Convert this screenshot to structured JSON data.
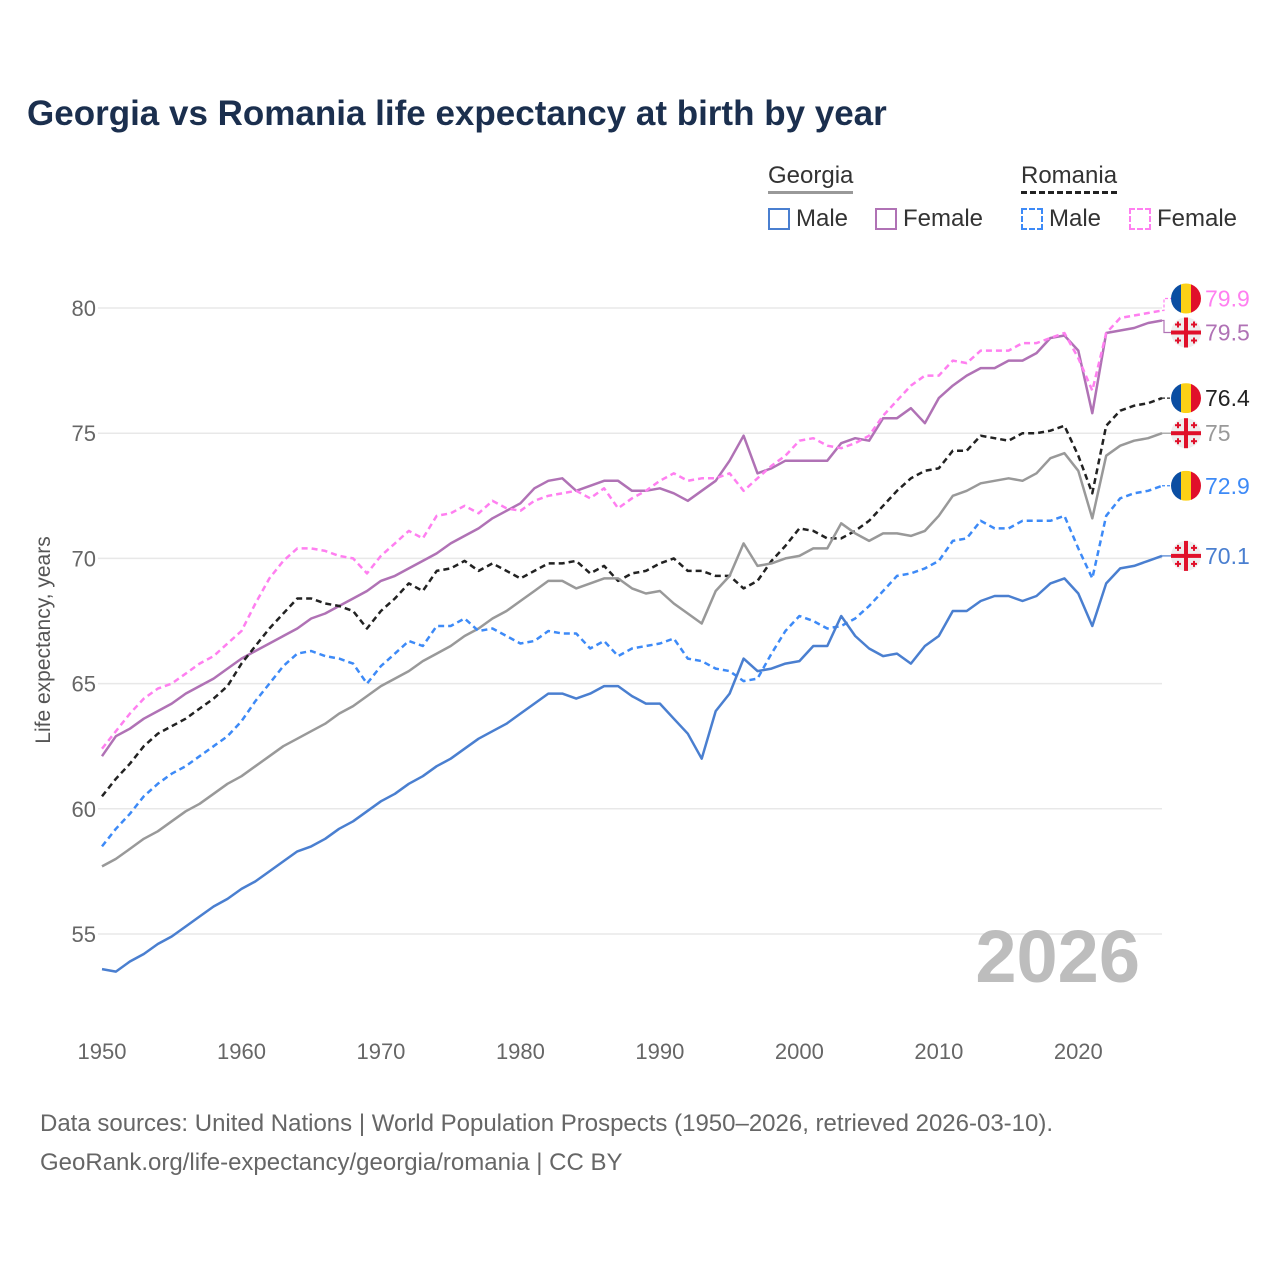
{
  "chart_data": {
    "type": "line",
    "title": "Georgia vs Romania life expectancy at birth by year",
    "xlabel": "",
    "ylabel": "Life expectancy, years",
    "xlim": [
      1950,
      2026
    ],
    "ylim": [
      52.5,
      82
    ],
    "x_ticks": [
      1950,
      1960,
      1970,
      1980,
      1990,
      2000,
      2010,
      2020
    ],
    "x_tick_labels": [
      "1950",
      "1960",
      "1970",
      "1980",
      "1990",
      "2000",
      "2010",
      "2020"
    ],
    "y_ticks": [
      55,
      60,
      65,
      70,
      75,
      80
    ],
    "y_tick_labels": [
      "55",
      "60",
      "65",
      "70",
      "75",
      "80"
    ],
    "grid": true,
    "watermark": "2026",
    "legend": {
      "placement": "top-right",
      "groups": [
        {
          "country": "Georgia",
          "items": [
            "Male",
            "Female"
          ]
        },
        {
          "country": "Romania",
          "items": [
            "Male",
            "Female"
          ]
        }
      ]
    },
    "x_start": 1950,
    "series": [
      {
        "name": "Georgia Female",
        "country": "georgia",
        "color": "#b072b5",
        "dashed": false,
        "end_label": "79.5",
        "values": [
          62.1,
          62.9,
          63.2,
          63.6,
          63.9,
          64.2,
          64.6,
          64.9,
          65.2,
          65.6,
          66.0,
          66.3,
          66.6,
          66.9,
          67.2,
          67.6,
          67.8,
          68.1,
          68.4,
          68.7,
          69.1,
          69.3,
          69.6,
          69.9,
          70.2,
          70.6,
          70.9,
          71.2,
          71.6,
          71.9,
          72.2,
          72.8,
          73.1,
          73.2,
          72.7,
          72.9,
          73.1,
          73.1,
          72.7,
          72.7,
          72.8,
          72.6,
          72.3,
          72.7,
          73.1,
          73.9,
          74.9,
          73.4,
          73.6,
          73.9,
          73.9,
          73.9,
          73.9,
          74.6,
          74.8,
          74.7,
          75.6,
          75.6,
          76.0,
          75.4,
          76.4,
          76.9,
          77.3,
          77.6,
          77.6,
          77.9,
          77.9,
          78.2,
          78.8,
          78.9,
          78.3,
          75.8,
          79.0,
          79.1,
          79.2,
          79.4,
          79.5
        ]
      },
      {
        "name": "Romania Female",
        "country": "romania",
        "color": "#ff7ff0",
        "dashed": true,
        "end_label": "79.9",
        "values": [
          62.4,
          63.1,
          63.8,
          64.4,
          64.8,
          65.0,
          65.4,
          65.8,
          66.1,
          66.6,
          67.1,
          68.2,
          69.2,
          69.9,
          70.4,
          70.4,
          70.3,
          70.1,
          70.0,
          69.4,
          70.1,
          70.6,
          71.1,
          70.8,
          71.7,
          71.8,
          72.1,
          71.8,
          72.3,
          72.0,
          71.9,
          72.3,
          72.5,
          72.6,
          72.7,
          72.4,
          72.8,
          72.0,
          72.4,
          72.7,
          73.1,
          73.4,
          73.1,
          73.2,
          73.2,
          73.4,
          72.7,
          73.2,
          73.7,
          74.1,
          74.7,
          74.8,
          74.5,
          74.4,
          74.6,
          74.9,
          75.7,
          76.3,
          76.9,
          77.3,
          77.3,
          77.9,
          77.8,
          78.3,
          78.3,
          78.3,
          78.6,
          78.6,
          78.8,
          79.0,
          78.0,
          76.7,
          79.0,
          79.6,
          79.7,
          79.8,
          79.9
        ]
      },
      {
        "name": "Romania",
        "country": "romania",
        "color": "#222222",
        "dashed": true,
        "end_label": "76.4",
        "values": [
          60.5,
          61.2,
          61.8,
          62.5,
          63.0,
          63.3,
          63.6,
          64.0,
          64.4,
          64.9,
          65.8,
          66.5,
          67.2,
          67.8,
          68.4,
          68.4,
          68.2,
          68.1,
          67.9,
          67.2,
          67.9,
          68.4,
          69.0,
          68.7,
          69.5,
          69.6,
          69.9,
          69.5,
          69.8,
          69.5,
          69.2,
          69.5,
          69.8,
          69.8,
          69.9,
          69.4,
          69.7,
          69.1,
          69.4,
          69.5,
          69.8,
          70.0,
          69.5,
          69.5,
          69.3,
          69.3,
          68.8,
          69.1,
          69.9,
          70.5,
          71.2,
          71.1,
          70.8,
          70.8,
          71.1,
          71.5,
          72.1,
          72.7,
          73.2,
          73.5,
          73.6,
          74.3,
          74.3,
          74.9,
          74.8,
          74.7,
          75.0,
          75.0,
          75.1,
          75.3,
          74.1,
          72.6,
          75.3,
          75.9,
          76.1,
          76.2,
          76.4
        ]
      },
      {
        "name": "Georgia",
        "country": "georgia",
        "color": "#999999",
        "dashed": false,
        "end_label": "75",
        "values": [
          57.7,
          58.0,
          58.4,
          58.8,
          59.1,
          59.5,
          59.9,
          60.2,
          60.6,
          61.0,
          61.3,
          61.7,
          62.1,
          62.5,
          62.8,
          63.1,
          63.4,
          63.8,
          64.1,
          64.5,
          64.9,
          65.2,
          65.5,
          65.9,
          66.2,
          66.5,
          66.9,
          67.2,
          67.6,
          67.9,
          68.3,
          68.7,
          69.1,
          69.1,
          68.8,
          69.0,
          69.2,
          69.2,
          68.8,
          68.6,
          68.7,
          68.2,
          67.8,
          67.4,
          68.7,
          69.3,
          70.6,
          69.7,
          69.8,
          70.0,
          70.1,
          70.4,
          70.4,
          71.4,
          71.0,
          70.7,
          71.0,
          71.0,
          70.9,
          71.1,
          71.7,
          72.5,
          72.7,
          73.0,
          73.1,
          73.2,
          73.1,
          73.4,
          74.0,
          74.2,
          73.5,
          71.6,
          74.1,
          74.5,
          74.7,
          74.8,
          75.0
        ]
      },
      {
        "name": "Romania Male",
        "country": "romania",
        "color": "#3d8af7",
        "dashed": true,
        "end_label": "72.9",
        "values": [
          58.5,
          59.2,
          59.8,
          60.5,
          61.0,
          61.4,
          61.7,
          62.1,
          62.5,
          62.9,
          63.5,
          64.3,
          65.0,
          65.7,
          66.2,
          66.3,
          66.1,
          66.0,
          65.8,
          65.0,
          65.7,
          66.2,
          66.7,
          66.5,
          67.3,
          67.3,
          67.6,
          67.1,
          67.2,
          66.9,
          66.6,
          66.7,
          67.1,
          67.0,
          67.0,
          66.4,
          66.7,
          66.1,
          66.4,
          66.5,
          66.6,
          66.8,
          66.0,
          65.9,
          65.6,
          65.5,
          65.1,
          65.2,
          66.2,
          67.1,
          67.7,
          67.5,
          67.2,
          67.3,
          67.6,
          68.1,
          68.7,
          69.3,
          69.4,
          69.6,
          69.9,
          70.7,
          70.8,
          71.5,
          71.2,
          71.2,
          71.5,
          71.5,
          71.5,
          71.7,
          70.4,
          69.2,
          71.7,
          72.4,
          72.6,
          72.7,
          72.9
        ]
      },
      {
        "name": "Georgia Male",
        "country": "georgia",
        "color": "#4a7fd0",
        "dashed": false,
        "end_label": "70.1",
        "values": [
          53.6,
          53.5,
          53.9,
          54.2,
          54.6,
          54.9,
          55.3,
          55.7,
          56.1,
          56.4,
          56.8,
          57.1,
          57.5,
          57.9,
          58.3,
          58.5,
          58.8,
          59.2,
          59.5,
          59.9,
          60.3,
          60.6,
          61.0,
          61.3,
          61.7,
          62.0,
          62.4,
          62.8,
          63.1,
          63.4,
          63.8,
          64.2,
          64.6,
          64.6,
          64.4,
          64.6,
          64.9,
          64.9,
          64.5,
          64.2,
          64.2,
          63.6,
          63.0,
          62.0,
          63.9,
          64.6,
          66.0,
          65.5,
          65.6,
          65.8,
          65.9,
          66.5,
          66.5,
          67.7,
          66.9,
          66.4,
          66.1,
          66.2,
          65.8,
          66.5,
          66.9,
          67.9,
          67.9,
          68.3,
          68.5,
          68.5,
          68.3,
          68.5,
          69.0,
          69.2,
          68.6,
          67.3,
          69.0,
          69.6,
          69.7,
          69.9,
          70.1
        ]
      }
    ]
  },
  "legend": {
    "georgia": "Georgia",
    "romania": "Romania",
    "male": "Male",
    "female": "Female",
    "georgia_male_color": "#4a7fd0",
    "georgia_female_color": "#b072b5",
    "romania_male_color": "#3d8af7",
    "romania_female_color": "#ff7ff0"
  },
  "footer": {
    "line1": "Data sources: United Nations | World Population Prospects (1950–2026, retrieved 2026-03-10).",
    "line2": "GeoRank.org/life-expectancy/georgia/romania | CC BY"
  }
}
